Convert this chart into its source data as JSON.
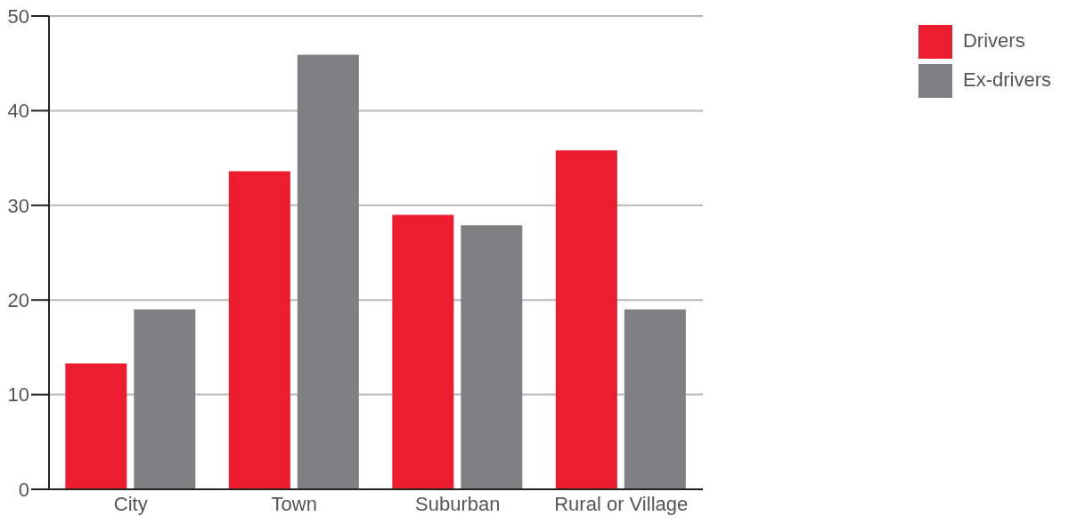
{
  "chart_data": {
    "type": "bar",
    "categories": [
      "City",
      "Town",
      "Suburban",
      "Rural or Village"
    ],
    "series": [
      {
        "name": "Drivers",
        "color": "#ed1c2e",
        "values": [
          13.3,
          33.6,
          29.0,
          35.8
        ]
      },
      {
        "name": "Ex-drivers",
        "color": "#808084",
        "values": [
          19.0,
          45.9,
          27.9,
          19.0
        ]
      }
    ],
    "ylim": [
      0,
      50
    ],
    "yticks": [
      0,
      10,
      20,
      30,
      40,
      50
    ],
    "grid": "y",
    "legend": "top right"
  }
}
